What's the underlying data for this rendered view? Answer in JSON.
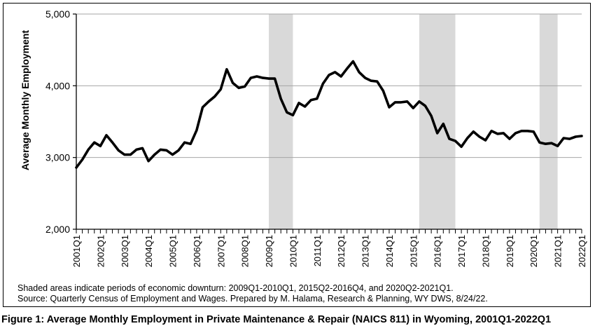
{
  "figure_caption": "Figure 1: Average Monthly Employment in Private Maintenance & Repair (NAICS 811) in Wyoming, 2001Q1-2022Q1",
  "notes": {
    "shading": "Shaded areas indicate periods of economic downturn: 2009Q1-2010Q1, 2015Q2-2016Q4, and 2020Q2-2021Q1.",
    "source": "Source: Quarterly Census of Employment and Wages. Prepared by M. Halama, Research & Planning, WY DWS, 8/24/22."
  },
  "colors": {
    "line": "#000000",
    "shade": "#d9d9d9",
    "grid": "#a6a6a6"
  },
  "chart_data": {
    "type": "line",
    "title": "",
    "xlabel": "",
    "ylabel": "Average Monthly Employment",
    "ylim": [
      2000,
      5000
    ],
    "yticks": [
      "2,000",
      "3,000",
      "4,000",
      "5,000"
    ],
    "ytick_values": [
      2000,
      3000,
      4000,
      5000
    ],
    "grid": "horizontal",
    "xtick_labels": [
      "2001Q1",
      "2002Q1",
      "2003Q1",
      "2004Q1",
      "2005Q1",
      "2006Q1",
      "2007Q1",
      "2008Q1",
      "2009Q1",
      "2010Q1",
      "2011Q1",
      "2012Q1",
      "2013Q1",
      "2014Q1",
      "2015Q1",
      "2016Q1",
      "2017Q1",
      "2018Q1",
      "2019Q1",
      "2020Q1",
      "2021Q1",
      "2022Q1"
    ],
    "shaded_periods": [
      [
        "2009Q1",
        "2010Q1"
      ],
      [
        "2015Q2",
        "2016Q4"
      ],
      [
        "2020Q2",
        "2021Q1"
      ]
    ],
    "series": [
      {
        "x": [
          "2001Q1",
          "2001Q2",
          "2001Q3",
          "2001Q4",
          "2002Q1",
          "2002Q2",
          "2002Q3",
          "2002Q4",
          "2003Q1",
          "2003Q2",
          "2003Q3",
          "2003Q4",
          "2004Q1",
          "2004Q2",
          "2004Q3",
          "2004Q4",
          "2005Q1",
          "2005Q2",
          "2005Q3",
          "2005Q4",
          "2006Q1",
          "2006Q2",
          "2006Q3",
          "2006Q4",
          "2007Q1",
          "2007Q2",
          "2007Q3",
          "2007Q4",
          "2008Q1",
          "2008Q2",
          "2008Q3",
          "2008Q4",
          "2009Q1",
          "2009Q2",
          "2009Q3",
          "2009Q4",
          "2010Q1",
          "2010Q2",
          "2010Q3",
          "2010Q4",
          "2011Q1",
          "2011Q2",
          "2011Q3",
          "2011Q4",
          "2012Q1",
          "2012Q2",
          "2012Q3",
          "2012Q4",
          "2013Q1",
          "2013Q2",
          "2013Q3",
          "2013Q4",
          "2014Q1",
          "2014Q2",
          "2014Q3",
          "2014Q4",
          "2015Q1",
          "2015Q2",
          "2015Q3",
          "2015Q4",
          "2016Q1",
          "2016Q2",
          "2016Q3",
          "2016Q4",
          "2017Q1",
          "2017Q2",
          "2017Q3",
          "2017Q4",
          "2018Q1",
          "2018Q2",
          "2018Q3",
          "2018Q4",
          "2019Q1",
          "2019Q2",
          "2019Q3",
          "2019Q4",
          "2020Q1",
          "2020Q2",
          "2020Q3",
          "2020Q4",
          "2021Q1",
          "2021Q2",
          "2021Q3",
          "2021Q4",
          "2022Q1"
        ],
        "values": [
          2860,
          2970,
          3110,
          3210,
          3160,
          3310,
          3210,
          3100,
          3040,
          3040,
          3110,
          3130,
          2950,
          3040,
          3110,
          3100,
          3040,
          3100,
          3210,
          3190,
          3380,
          3700,
          3780,
          3850,
          3950,
          4230,
          4040,
          3970,
          3990,
          4110,
          4130,
          4110,
          4100,
          4100,
          3820,
          3630,
          3590,
          3760,
          3710,
          3800,
          3820,
          4030,
          4150,
          4190,
          4130,
          4240,
          4340,
          4190,
          4110,
          4070,
          4060,
          3930,
          3700,
          3770,
          3770,
          3780,
          3690,
          3780,
          3720,
          3580,
          3340,
          3470,
          3260,
          3230,
          3150,
          3270,
          3360,
          3290,
          3240,
          3370,
          3330,
          3340,
          3260,
          3340,
          3370,
          3370,
          3360,
          3210,
          3190,
          3200,
          3160,
          3270,
          3260,
          3290,
          3300
        ]
      }
    ]
  }
}
